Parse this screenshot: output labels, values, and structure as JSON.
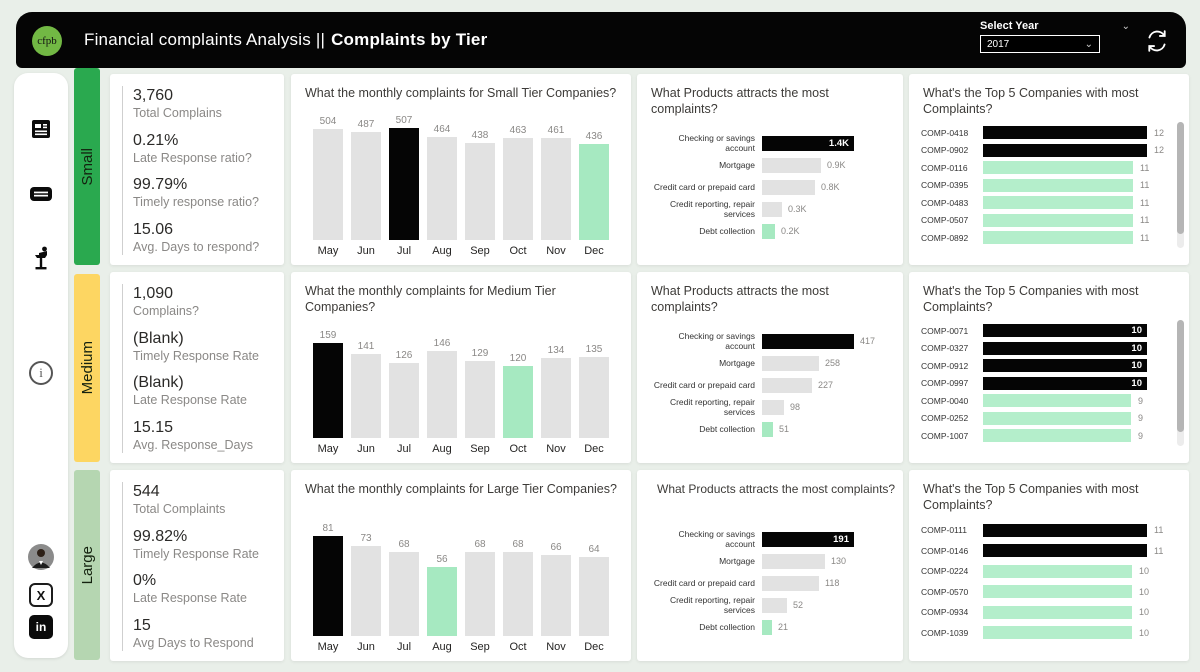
{
  "header": {
    "logo_text": "cfpb",
    "title_regular": "Financial complaints Analysis ||",
    "title_bold": "Complaints by Tier",
    "year_label": "Select Year",
    "year_value": "2017"
  },
  "colors": {
    "background": "#e9efe9",
    "header_bg": "#050505",
    "logo_green": "#72b844",
    "bar_gray": "#e2e2e2",
    "bar_black": "#050505",
    "bar_mint": "#a6e9c1",
    "bar_mint_light": "#b4eecb",
    "tab_small": "#2aa94f",
    "tab_medium": "#fdd662",
    "tab_large": "#b5d6b1"
  },
  "sidebar_icons": [
    "report-icon",
    "card-icon",
    "podium-speaker-icon",
    "info-icon",
    "avatar",
    "x-twitter-icon",
    "linkedin-icon"
  ],
  "tiers": [
    {
      "name": "Small",
      "tab_color": "#2aa94f",
      "kpis": [
        {
          "value": "3,760",
          "label": "Total Complains"
        },
        {
          "value": "0.21%",
          "label": "Late Response ratio?"
        },
        {
          "value": "99.79%",
          "label": "Timely response ratio?"
        },
        {
          "value": "15.06",
          "label": "Avg. Days to respond?"
        }
      ],
      "monthly": {
        "type": "bar",
        "title": "What the monthly complaints for Small Tier Companies?",
        "categories": [
          "May",
          "Jun",
          "Jul",
          "Aug",
          "Sep",
          "Oct",
          "Nov",
          "Dec"
        ],
        "values": [
          504,
          487,
          507,
          464,
          438,
          463,
          461,
          436
        ],
        "styles": [
          "gray",
          "gray",
          "black",
          "gray",
          "gray",
          "gray",
          "gray",
          "mint"
        ]
      },
      "products": {
        "type": "bar-horizontal",
        "title": "What Products attracts the most complaints?",
        "items": [
          {
            "label": "Checking or savings account",
            "value": 1400,
            "display": "1.4K",
            "style": "black",
            "value_inside": true
          },
          {
            "label": "Mortgage",
            "value": 900,
            "display": "0.9K",
            "style": "gray",
            "value_inside": false
          },
          {
            "label": "Credit card or prepaid card",
            "value": 800,
            "display": "0.8K",
            "style": "gray",
            "value_inside": false
          },
          {
            "label": "Credit reporting, repair services",
            "value": 300,
            "display": "0.3K",
            "style": "gray",
            "value_inside": false
          },
          {
            "label": "Debt collection",
            "value": 200,
            "display": "0.2K",
            "style": "mint",
            "value_inside": false
          }
        ]
      },
      "companies": {
        "type": "bar-horizontal",
        "title": "What's the Top 5 Companies with most Complaints?",
        "scrollbar": true,
        "items": [
          {
            "label": "COMP-0418",
            "value": 12,
            "display": "12",
            "style": "black",
            "value_inside": false
          },
          {
            "label": "COMP-0902",
            "value": 12,
            "display": "12",
            "style": "black",
            "value_inside": false
          },
          {
            "label": "COMP-0116",
            "value": 11,
            "display": "11",
            "style": "mint",
            "value_inside": false
          },
          {
            "label": "COMP-0395",
            "value": 11,
            "display": "11",
            "style": "mint",
            "value_inside": false
          },
          {
            "label": "COMP-0483",
            "value": 11,
            "display": "11",
            "style": "mint",
            "value_inside": false
          },
          {
            "label": "COMP-0507",
            "value": 11,
            "display": "11",
            "style": "mint",
            "value_inside": false
          },
          {
            "label": "COMP-0892",
            "value": 11,
            "display": "11",
            "style": "mint",
            "value_inside": false
          }
        ]
      }
    },
    {
      "name": "Medium",
      "tab_color": "#fdd662",
      "kpis": [
        {
          "value": "1,090",
          "label": "Complains?"
        },
        {
          "value": "(Blank)",
          "label": "Timely Response Rate"
        },
        {
          "value": "(Blank)",
          "label": "Late Response Rate"
        },
        {
          "value": "15.15",
          "label": "Avg. Response_Days"
        }
      ],
      "monthly": {
        "type": "bar",
        "title": "What the monthly complaints for Medium Tier Companies?",
        "categories": [
          "May",
          "Jun",
          "Jul",
          "Aug",
          "Sep",
          "Oct",
          "Nov",
          "Dec"
        ],
        "values": [
          159,
          141,
          126,
          146,
          129,
          120,
          134,
          135
        ],
        "styles": [
          "black",
          "gray",
          "gray",
          "gray",
          "gray",
          "mint",
          "gray",
          "gray"
        ]
      },
      "products": {
        "type": "bar-horizontal",
        "title": "What Products attracts the most complaints?",
        "items": [
          {
            "label": "Checking or savings account",
            "value": 417,
            "display": "417",
            "style": "black",
            "value_inside": false
          },
          {
            "label": "Mortgage",
            "value": 258,
            "display": "258",
            "style": "gray",
            "value_inside": false
          },
          {
            "label": "Credit card or prepaid card",
            "value": 227,
            "display": "227",
            "style": "gray",
            "value_inside": false
          },
          {
            "label": "Credit reporting, repair services",
            "value": 98,
            "display": "98",
            "style": "gray",
            "value_inside": false
          },
          {
            "label": "Debt collection",
            "value": 51,
            "display": "51",
            "style": "mint",
            "value_inside": false
          }
        ]
      },
      "companies": {
        "type": "bar-horizontal",
        "title": "What's the Top 5 Companies with most Complaints?",
        "scrollbar": true,
        "items": [
          {
            "label": "COMP-0071",
            "value": 10,
            "display": "10",
            "style": "black",
            "value_inside": true
          },
          {
            "label": "COMP-0327",
            "value": 10,
            "display": "10",
            "style": "black",
            "value_inside": true
          },
          {
            "label": "COMP-0912",
            "value": 10,
            "display": "10",
            "style": "black",
            "value_inside": true
          },
          {
            "label": "COMP-0997",
            "value": 10,
            "display": "10",
            "style": "black",
            "value_inside": true
          },
          {
            "label": "COMP-0040",
            "value": 9,
            "display": "9",
            "style": "mint",
            "value_inside": false
          },
          {
            "label": "COMP-0252",
            "value": 9,
            "display": "9",
            "style": "mint",
            "value_inside": false
          },
          {
            "label": "COMP-1007",
            "value": 9,
            "display": "9",
            "style": "mint",
            "value_inside": false
          }
        ]
      }
    },
    {
      "name": "Large",
      "tab_color": "#b5d6b1",
      "kpis": [
        {
          "value": "544",
          "label": "Total Complaints"
        },
        {
          "value": "99.82%",
          "label": "Timely Response Rate"
        },
        {
          "value": "0%",
          "label": "Late Response Rate"
        },
        {
          "value": "15",
          "label": "Avg Days to Respond"
        }
      ],
      "monthly": {
        "type": "bar",
        "title": "What the monthly complaints for Large Tier Companies?",
        "categories": [
          "May",
          "Jun",
          "Jul",
          "Aug",
          "Sep",
          "Oct",
          "Nov",
          "Dec"
        ],
        "values": [
          81,
          73,
          68,
          56,
          68,
          68,
          66,
          64
        ],
        "styles": [
          "black",
          "gray",
          "gray",
          "mint",
          "gray",
          "gray",
          "gray",
          "gray"
        ]
      },
      "products": {
        "type": "bar-horizontal",
        "title": "What Products attracts the most complaints?",
        "items": [
          {
            "label": "Checking or savings account",
            "value": 191,
            "display": "191",
            "style": "black",
            "value_inside": true
          },
          {
            "label": "Mortgage",
            "value": 130,
            "display": "130",
            "style": "gray",
            "value_inside": false
          },
          {
            "label": "Credit card or prepaid card",
            "value": 118,
            "display": "118",
            "style": "gray",
            "value_inside": false
          },
          {
            "label": "Credit reporting, repair services",
            "value": 52,
            "display": "52",
            "style": "gray",
            "value_inside": false
          },
          {
            "label": "Debt collection",
            "value": 21,
            "display": "21",
            "style": "mint",
            "value_inside": false
          }
        ]
      },
      "companies": {
        "type": "bar-horizontal",
        "title": "What's the Top 5 Companies with most Complaints?",
        "scrollbar": false,
        "items": [
          {
            "label": "COMP-0111",
            "value": 11,
            "display": "11",
            "style": "black",
            "value_inside": false
          },
          {
            "label": "COMP-0146",
            "value": 11,
            "display": "11",
            "style": "black",
            "value_inside": false
          },
          {
            "label": "COMP-0224",
            "value": 10,
            "display": "10",
            "style": "mint",
            "value_inside": false
          },
          {
            "label": "COMP-0570",
            "value": 10,
            "display": "10",
            "style": "mint",
            "value_inside": false
          },
          {
            "label": "COMP-0934",
            "value": 10,
            "display": "10",
            "style": "mint",
            "value_inside": false
          },
          {
            "label": "COMP-1039",
            "value": 10,
            "display": "10",
            "style": "mint",
            "value_inside": false
          }
        ]
      }
    }
  ]
}
